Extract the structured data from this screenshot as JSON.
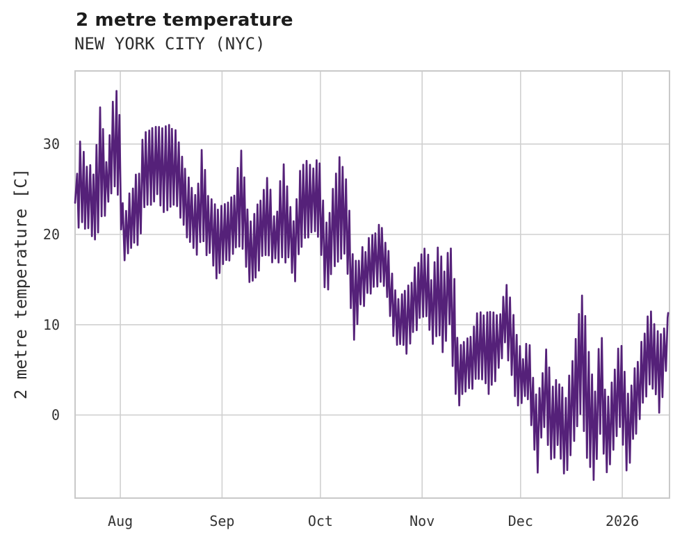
{
  "header": {
    "title": "2 metre temperature",
    "subtitle": "NEW YORK CITY (NYC)"
  },
  "y_axis": {
    "label": "2 metre temperature [C]",
    "ticks": [
      30,
      20,
      10,
      0
    ]
  },
  "x_axis": {
    "ticks": [
      {
        "label": "Aug",
        "day": 0
      },
      {
        "label": "Sep",
        "day": 31
      },
      {
        "label": "Oct",
        "day": 61
      },
      {
        "label": "Nov",
        "day": 92
      },
      {
        "label": "Dec",
        "day": 122
      },
      {
        "label": "2026",
        "day": 153
      }
    ]
  },
  "colors": {
    "line": "#552179",
    "grid": "#d0d0d0",
    "border": "#c9c9c9",
    "title_text": "#1c1c1c",
    "tick_text": "#333333",
    "background": "#ffffff"
  },
  "chart_data": {
    "type": "line",
    "title": "2 metre temperature",
    "subtitle": "NEW YORK CITY (NYC)",
    "xlabel": "",
    "ylabel": "2 metre temperature [C]",
    "x_unit": "days relative to Aug 1 (2025), series spans ~Jul 18 2025 - Jan 15 2026",
    "x_range": [
      -13.8,
      167.4
    ],
    "ylim": [
      -9.2,
      38.1
    ],
    "ytick_values": [
      0,
      10,
      20,
      30
    ],
    "xtick_labels": [
      "Aug",
      "Sep",
      "Oct",
      "Nov",
      "Dec",
      "2026"
    ],
    "grid": true,
    "legend": false,
    "series_name": "2 metre temperature [C]",
    "start_value": 23.5,
    "end_value": 11.3,
    "daily_envelope": [
      [
        -13.8,
        20.6,
        25.2
      ],
      [
        -12,
        21.4,
        30.7
      ],
      [
        -10,
        21,
        27.5
      ],
      [
        -8,
        19.4,
        27
      ],
      [
        -6,
        21.5,
        34.5
      ],
      [
        -4.5,
        22.5,
        27.5
      ],
      [
        -2.5,
        25.5,
        34
      ],
      [
        -1.5,
        26,
        36.3
      ],
      [
        -0.5,
        24,
        35
      ],
      [
        1,
        17.3,
        21.5
      ],
      [
        2.5,
        17.5,
        24
      ],
      [
        4,
        18.5,
        25.7
      ],
      [
        6,
        19,
        27.3
      ],
      [
        7,
        23,
        31.8
      ],
      [
        9.5,
        23.5,
        31.6
      ],
      [
        11.5,
        24,
        31.8
      ],
      [
        13,
        22.5,
        31.7
      ],
      [
        15,
        23,
        31.7
      ],
      [
        17,
        23.5,
        31.5
      ],
      [
        19,
        20.6,
        28
      ],
      [
        21,
        19.8,
        26
      ],
      [
        23,
        18.1,
        24
      ],
      [
        25,
        19,
        29.5
      ],
      [
        27,
        17.7,
        24
      ],
      [
        29.5,
        14.5,
        22.5
      ],
      [
        31,
        16.5,
        23
      ],
      [
        33,
        17,
        24
      ],
      [
        35,
        18,
        25
      ],
      [
        37,
        19,
        29.7
      ],
      [
        39,
        14.7,
        21
      ],
      [
        41,
        15.5,
        22
      ],
      [
        43,
        17,
        24
      ],
      [
        45,
        18,
        26.4
      ],
      [
        47.5,
        16.6,
        21
      ],
      [
        49.5,
        17,
        28.5
      ],
      [
        51.5,
        17.5,
        24
      ],
      [
        53,
        14.1,
        21
      ],
      [
        55,
        19,
        27.9
      ],
      [
        57,
        20,
        27.6
      ],
      [
        59,
        20.5,
        27.6
      ],
      [
        61,
        19,
        28
      ],
      [
        62.5,
        12.9,
        21
      ],
      [
        64,
        15,
        23
      ],
      [
        67,
        18,
        29
      ],
      [
        69,
        17,
        25.7
      ],
      [
        71,
        8.1,
        16.5
      ],
      [
        73,
        12,
        17.8
      ],
      [
        75,
        13,
        18.5
      ],
      [
        77,
        14,
        20.2
      ],
      [
        79,
        14.5,
        20.7
      ],
      [
        81,
        13.5,
        19.4
      ],
      [
        83,
        9,
        15.2
      ],
      [
        85,
        7.8,
        13
      ],
      [
        87,
        6.9,
        13.5
      ],
      [
        89,
        8.5,
        15
      ],
      [
        91,
        10.5,
        17.2
      ],
      [
        93,
        11,
        18.7
      ],
      [
        95,
        8,
        15
      ],
      [
        97,
        9,
        19.1
      ],
      [
        98.5,
        6.4,
        16
      ],
      [
        100.5,
        10,
        18.5
      ],
      [
        101.5,
        5,
        18
      ],
      [
        102.5,
        0.9,
        8
      ],
      [
        105,
        2.4,
        8.3
      ],
      [
        107,
        3,
        9
      ],
      [
        109,
        4.5,
        11.9
      ],
      [
        112,
        2.7,
        11
      ],
      [
        114,
        4,
        11.5
      ],
      [
        116,
        5.5,
        11.5
      ],
      [
        117.5,
        8,
        15.2
      ],
      [
        120.5,
        2,
        9.5
      ],
      [
        122.5,
        1,
        6.5
      ],
      [
        124.5,
        2.5,
        8.5
      ],
      [
        125.5,
        -2,
        4.5
      ],
      [
        127,
        -6.8,
        2
      ],
      [
        129,
        -1,
        5
      ],
      [
        130,
        -2,
        8.1
      ],
      [
        131.5,
        -5.3,
        3
      ],
      [
        133,
        -3.5,
        3.5
      ],
      [
        135.5,
        -6.9,
        2
      ],
      [
        137.5,
        -4,
        5
      ],
      [
        139,
        -2,
        8.5
      ],
      [
        140.5,
        1,
        14.1
      ],
      [
        142.5,
        -5,
        8.1
      ],
      [
        144.5,
        -7.3,
        2
      ],
      [
        146.5,
        -2,
        9.6
      ],
      [
        148,
        -6.1,
        1
      ],
      [
        150.5,
        -3.8,
        5.2
      ],
      [
        152.5,
        -1,
        9.1
      ],
      [
        154.5,
        -6.1,
        2
      ],
      [
        157,
        -2,
        5
      ],
      [
        159,
        1,
        7.8
      ],
      [
        161.5,
        4,
        11.9
      ],
      [
        163,
        3,
        9.5
      ],
      [
        164.5,
        0.4,
        8.5
      ],
      [
        167,
        6,
        11.3
      ]
    ]
  }
}
